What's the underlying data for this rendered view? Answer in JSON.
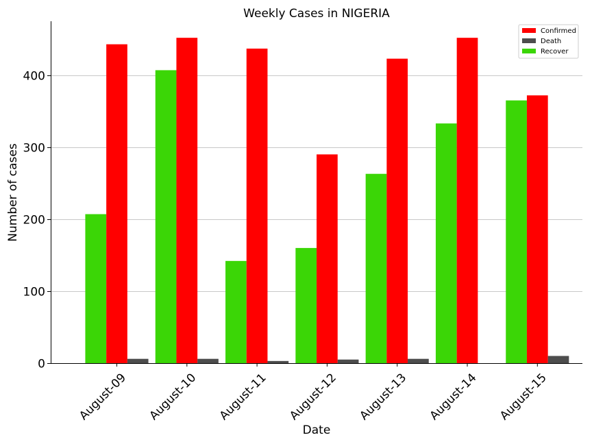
{
  "chart_data": {
    "type": "bar",
    "title": "Weekly Cases in NIGERIA",
    "xlabel": "Date",
    "ylabel": "Number of cases",
    "categories": [
      "August-09",
      "August-10",
      "August-11",
      "August-12",
      "August-13",
      "August-14",
      "August-15"
    ],
    "series": [
      {
        "name": "Recover",
        "color": "#3bd606",
        "values": [
          207,
          407,
          142,
          160,
          263,
          333,
          365
        ]
      },
      {
        "name": "Confirmed",
        "color": "#ff0000",
        "values": [
          443,
          452,
          437,
          290,
          423,
          452,
          372
        ]
      },
      {
        "name": "Death",
        "color": "#4d4d4d",
        "values": [
          6,
          6,
          3,
          5,
          6,
          0,
          10
        ]
      }
    ],
    "legend_order": [
      "Confirmed",
      "Death",
      "Recover"
    ],
    "ylim": [
      0,
      475
    ],
    "yticks": [
      0,
      100,
      200,
      300,
      400
    ],
    "grid": "horizontal",
    "legend_position": "top-right"
  }
}
